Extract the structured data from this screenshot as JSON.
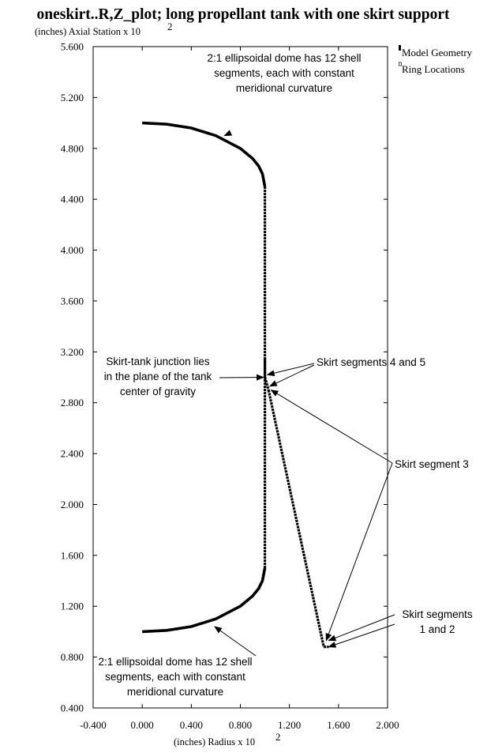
{
  "chart_data": {
    "type": "scatter",
    "title": "oneskirt..R,Z_plot; long propellant tank with one skirt support",
    "xlabel": "(inches) Radius x 10",
    "xlabel_exp": "2",
    "ylabel": "(inches) Axial Station x 10",
    "ylabel_exp": "2",
    "xlim": [
      -0.4,
      2.0
    ],
    "ylim": [
      0.4,
      5.6
    ],
    "x_ticks": [
      "-0.400",
      "0.000",
      "0.400",
      "0.800",
      "1.200",
      "1.600",
      "2.000"
    ],
    "y_ticks": [
      "0.400",
      "0.800",
      "1.200",
      "1.600",
      "2.000",
      "2.400",
      "2.800",
      "3.200",
      "3.600",
      "4.000",
      "4.400",
      "4.800",
      "5.200",
      "5.600"
    ],
    "legend": {
      "position": "top-right",
      "entries": [
        "Model Geometry",
        "Ring Locations"
      ]
    },
    "series": [
      {
        "name": "Model Geometry",
        "segments": [
          {
            "label": "top dome",
            "x": [
              0.0,
              0.2,
              0.4,
              0.6,
              0.8,
              0.9,
              0.95,
              0.98,
              1.0
            ],
            "y": [
              5.0,
              4.99,
              4.96,
              4.9,
              4.8,
              4.72,
              4.66,
              4.6,
              4.5
            ]
          },
          {
            "label": "cylinder",
            "x": [
              1.0,
              1.0
            ],
            "y": [
              4.5,
              1.5
            ]
          },
          {
            "label": "bottom dome",
            "x": [
              1.0,
              0.98,
              0.95,
              0.9,
              0.8,
              0.6,
              0.4,
              0.2,
              0.0
            ],
            "y": [
              1.5,
              1.4,
              1.34,
              1.28,
              1.2,
              1.1,
              1.04,
              1.01,
              1.0
            ]
          },
          {
            "label": "skirt segments 4 and 5",
            "x": [
              1.0,
              1.0,
              1.03
            ],
            "y": [
              3.15,
              3.0,
              2.9
            ]
          },
          {
            "label": "skirt segment 3",
            "x": [
              1.03,
              1.48
            ],
            "y": [
              2.9,
              0.88
            ]
          },
          {
            "label": "skirt segments 1 and 2",
            "x": [
              1.48,
              1.5,
              1.52
            ],
            "y": [
              0.88,
              0.88,
              0.88
            ]
          }
        ]
      }
    ],
    "annotations": [
      {
        "id": "top-dome",
        "lines": [
          "2:1 ellipsoidal dome has 12 shell",
          "segments, each with constant",
          "meridional curvature"
        ],
        "arrow_to": [
          [
            0.67,
            4.9
          ]
        ]
      },
      {
        "id": "junction",
        "lines": [
          "Skirt-tank junction lies",
          "in the plane of the tank",
          "center of gravity"
        ],
        "arrow_to": [
          [
            0.99,
            3.0
          ]
        ]
      },
      {
        "id": "skirt-45",
        "lines": [
          "Skirt segments 4 and 5"
        ],
        "arrow_to": [
          [
            1.02,
            3.02
          ],
          [
            1.04,
            2.93
          ]
        ]
      },
      {
        "id": "skirt-3",
        "lines": [
          "Skirt segment 3"
        ],
        "arrow_to": [
          [
            1.05,
            2.9
          ],
          [
            1.5,
            0.93
          ]
        ]
      },
      {
        "id": "skirt-12",
        "lines": [
          "Skirt segments",
          "1 and 2"
        ],
        "arrow_to": [
          [
            1.52,
            0.93
          ],
          [
            1.52,
            0.88
          ]
        ]
      },
      {
        "id": "bottom-dome",
        "lines": [
          "2:1 ellipsoidal dome has 12 shell",
          "segments, each with constant",
          "meridional curvature"
        ],
        "arrow_to": [
          [
            0.59,
            1.04
          ]
        ]
      }
    ]
  }
}
